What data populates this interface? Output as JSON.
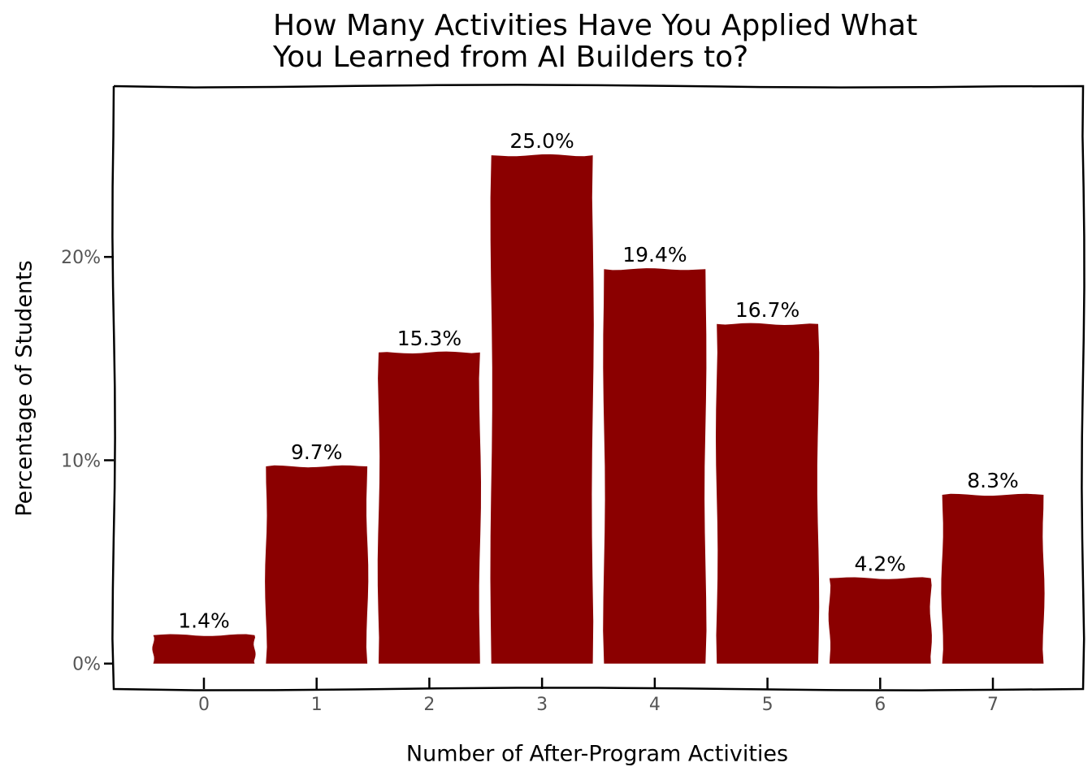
{
  "chart_data": {
    "type": "bar",
    "title_lines": [
      "How Many Activities Have You Applied What",
      "You Learned from AI Builders to?"
    ],
    "xlabel": "Number of After-Program Activities",
    "ylabel": "Percentage of Students",
    "categories": [
      "0",
      "1",
      "2",
      "3",
      "4",
      "5",
      "6",
      "7"
    ],
    "values": [
      1.4,
      9.7,
      15.3,
      25.0,
      19.4,
      16.7,
      4.2,
      8.3
    ],
    "data_labels": [
      "1.4%",
      "9.7%",
      "15.3%",
      "25.0%",
      "19.4%",
      "16.7%",
      "4.2%",
      "8.3%"
    ],
    "yticks": [
      0,
      10,
      20
    ],
    "ytick_labels": [
      "0%",
      "10%",
      "20%"
    ],
    "ylim": [
      -1.25,
      28.4
    ],
    "grid": false,
    "colors": {
      "bar": "#8b0000",
      "axis": "#000000",
      "tick_label": "#555555"
    }
  }
}
